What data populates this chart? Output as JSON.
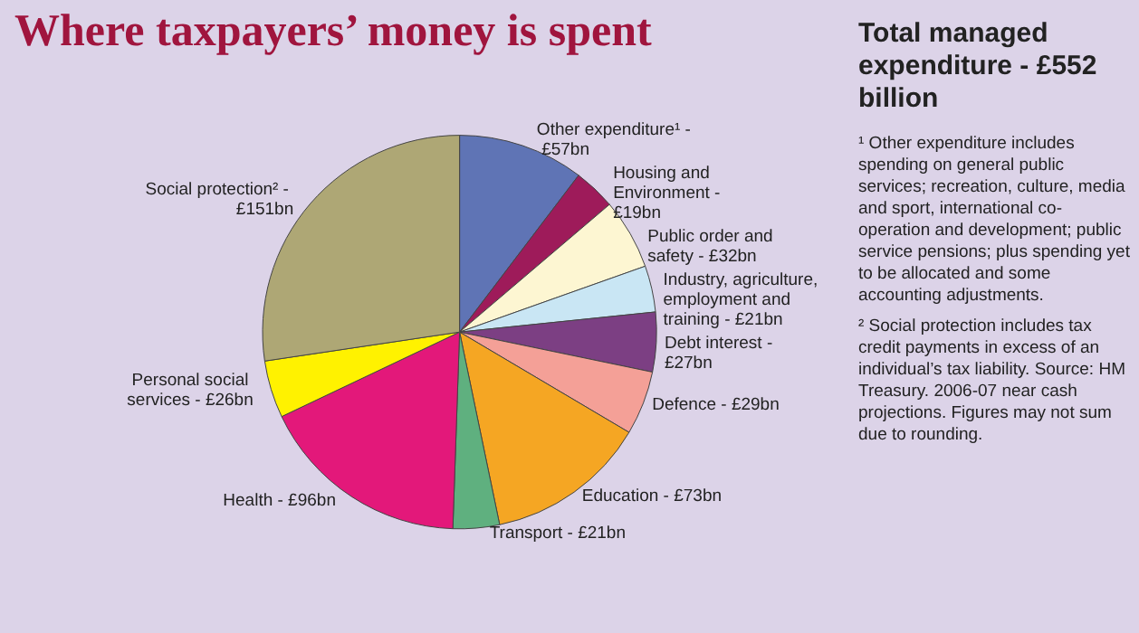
{
  "chart_data": {
    "type": "pie",
    "title": "Where taxpayers’ money is spent",
    "subtitle": "Total managed expenditure - £552 billion",
    "categories": [
      "Other expenditure¹ -",
      "Housing and Environment -",
      "Public order and safety -",
      "Industry, agriculture, employment and training -",
      "Debt interest -",
      "Defence -",
      "Education -",
      "Transport -",
      "Health -",
      "Personal social services -",
      "Social protection² -"
    ],
    "value_labels": [
      "£57bn",
      "£19bn",
      "£32bn",
      "£21bn",
      "£27bn",
      "£29bn",
      "£73bn",
      "£21bn",
      "£96bn",
      "£26bn",
      "£151bn"
    ],
    "values": [
      57,
      19,
      32,
      21,
      27,
      29,
      73,
      21,
      96,
      26,
      151
    ],
    "colors": [
      "#5f74b5",
      "#9e1b5a",
      "#fdf6d2",
      "#c9e6f4",
      "#7c3f83",
      "#f4a097",
      "#f5a623",
      "#5fb07f",
      "#e3187a",
      "#fff200",
      "#aea775"
    ],
    "annotations": [
      "¹ Other expenditure includes spending on general public services; recreation, culture, media and sport, international co-operation and development; public service pensions; plus spending yet to be allocated and some accounting adjustments.",
      "² Social protection includes tax credit payments in excess of an individual’s tax liability. Source: HM Treasury. 2006-07 near cash projections. Figures may not sum due to rounding."
    ]
  }
}
